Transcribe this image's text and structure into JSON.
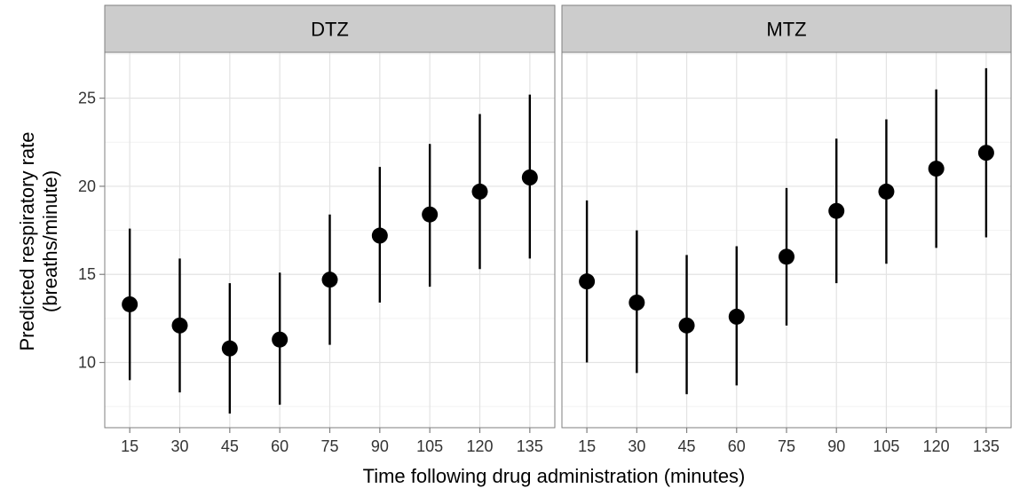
{
  "chart_data": {
    "type": "scatter",
    "subtype": "point-range (mean with interval), faceted",
    "xlabel": "Time following drug administration (minutes)",
    "ylabel_line1": "Predicted respiratory rate",
    "ylabel_line2": "(breaths/minute)",
    "categories": [
      "15",
      "30",
      "45",
      "60",
      "75",
      "90",
      "105",
      "120",
      "135"
    ],
    "y_ticks": [
      10,
      15,
      20,
      25
    ],
    "ylim": [
      6.3,
      27.6
    ],
    "grid": true,
    "panel_strip_color": "#cccccc",
    "point_color": "#000000",
    "panels": [
      {
        "strip": "DTZ",
        "values": [
          13.3,
          12.1,
          10.8,
          11.3,
          14.7,
          17.2,
          18.4,
          19.7,
          20.5
        ],
        "lower": [
          9.0,
          8.3,
          7.1,
          7.6,
          11.0,
          13.4,
          14.3,
          15.3,
          15.9
        ],
        "upper": [
          17.6,
          15.9,
          14.5,
          15.1,
          18.4,
          21.1,
          22.4,
          24.1,
          25.2
        ]
      },
      {
        "strip": "MTZ",
        "values": [
          14.6,
          13.4,
          12.1,
          12.6,
          16.0,
          18.6,
          19.7,
          21.0,
          21.9
        ],
        "lower": [
          10.0,
          9.4,
          8.2,
          8.7,
          12.1,
          14.5,
          15.6,
          16.5,
          17.1
        ],
        "upper": [
          19.2,
          17.5,
          16.1,
          16.6,
          19.9,
          22.7,
          23.8,
          25.5,
          26.7
        ]
      }
    ]
  }
}
